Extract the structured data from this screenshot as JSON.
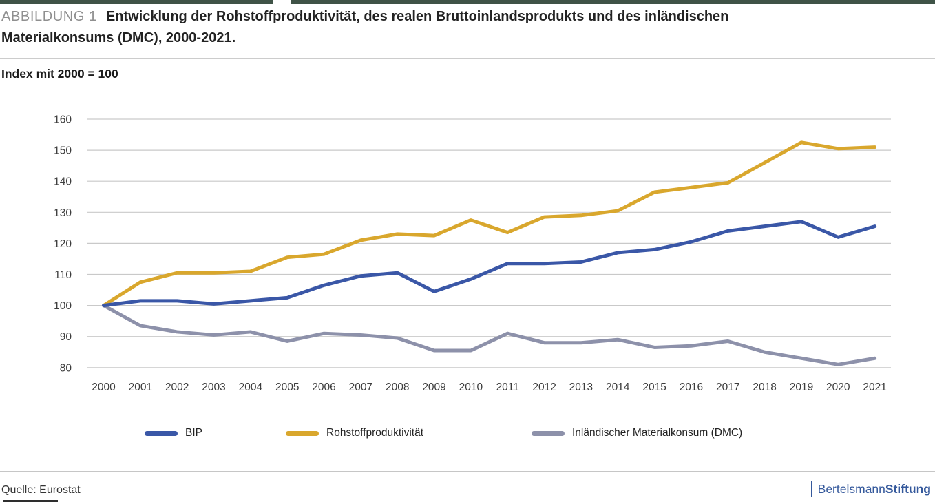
{
  "header": {
    "kicker": "ABBILDUNG 1",
    "title_line1": "Entwicklung der Rohstoffproduktivität, des realen Bruttoinlandsprodukts und des inländischen",
    "title_line2": "Materialkonsums (DMC), 2000-2021.",
    "subtitle": "Index mit 2000 = 100"
  },
  "chart_data": {
    "type": "line",
    "title": "Entwicklung der Rohstoffproduktivität, des realen Bruttoinlandsprodukts und des inländischen Materialkonsums (DMC), 2000-2021.",
    "subtitle": "Index mit 2000 = 100",
    "x": [
      2000,
      2001,
      2002,
      2003,
      2004,
      2005,
      2006,
      2007,
      2008,
      2009,
      2010,
      2011,
      2012,
      2013,
      2014,
      2015,
      2016,
      2017,
      2018,
      2019,
      2020,
      2021
    ],
    "series": [
      {
        "name": "BIP",
        "color": "#3A57A7",
        "values": [
          100,
          101.5,
          101.5,
          100.5,
          101.5,
          102.5,
          106.5,
          109.5,
          110.5,
          104.5,
          108.5,
          113.5,
          113.5,
          114,
          117,
          118,
          120.5,
          124,
          125.5,
          127,
          122,
          125.5
        ]
      },
      {
        "name": "Rohstoffproduktivität",
        "color": "#D9A72D",
        "values": [
          100,
          107.5,
          110.5,
          110.5,
          111,
          115.5,
          116.5,
          121,
          123,
          122.5,
          127.5,
          123.5,
          128.5,
          129,
          130.5,
          136.5,
          138,
          139.5,
          146,
          152.5,
          150.5,
          151
        ]
      },
      {
        "name": "Inländischer Materialkonsum (DMC)",
        "color": "#8D91AA",
        "values": [
          100,
          93.5,
          91.5,
          90.5,
          91.5,
          88.5,
          91,
          90.5,
          89.5,
          85.5,
          85.5,
          91,
          88,
          88,
          89,
          86.5,
          87,
          88.5,
          85,
          83,
          81,
          83
        ]
      }
    ],
    "ylim": [
      80,
      160
    ],
    "ytick_step": 10,
    "xlabel": "",
    "ylabel": "Index mit 2000 = 100",
    "grid": "horizontal",
    "legend_position": "bottom"
  },
  "footer": {
    "source": "Quelle: Eurostat",
    "logo": {
      "bar": "|",
      "brand_regular": "Bertelsmann",
      "brand_bold": "Stiftung"
    }
  },
  "colors": {
    "accent_blue": "#3A57A7",
    "accent_yellow": "#D9A72D",
    "accent_gray": "#8D91AA",
    "gridline": "#c9c9c9",
    "topbar": "#3F5347",
    "logo_blue": "#35599C"
  }
}
